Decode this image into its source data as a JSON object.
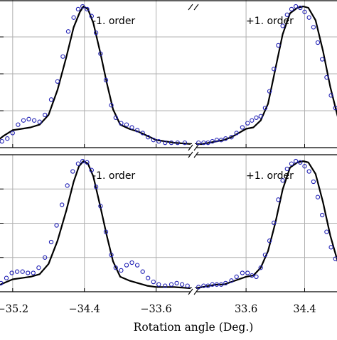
{
  "chart_data": {
    "type": "line",
    "xlabel": "Rotation angle (Deg.)",
    "x_ticks_left": [
      -35.2,
      -34.4,
      -33.6
    ],
    "x_tick_labels_left": [
      "−35.2",
      "−34.4",
      "−33.6"
    ],
    "x_ticks_right": [
      33.6,
      34.4
    ],
    "x_tick_labels_right": [
      "33.6",
      "34.4"
    ],
    "x_range_left": [
      -35.5,
      -33.2
    ],
    "x_range_right": [
      32.9,
      34.9
    ],
    "axis_break": true,
    "grid": true,
    "legend": "none",
    "colors": {
      "line": "#000000",
      "markers": "#1f1fb4",
      "grid": "#b0b0b0"
    },
    "panels": [
      {
        "left_annotation": "-1. order",
        "right_annotation": "+1. order",
        "ylim": [
          0,
          1.0
        ],
        "series": [
          {
            "style": "solid-line",
            "left_points": [
              [
                -35.5,
                0.01
              ],
              [
                -35.4,
                0.02
              ],
              [
                -35.3,
                0.07
              ],
              [
                -35.2,
                0.11
              ],
              [
                -35.1,
                0.12
              ],
              [
                -35.0,
                0.13
              ],
              [
                -34.9,
                0.15
              ],
              [
                -34.8,
                0.22
              ],
              [
                -34.7,
                0.4
              ],
              [
                -34.6,
                0.64
              ],
              [
                -34.52,
                0.85
              ],
              [
                -34.45,
                0.96
              ],
              [
                -34.41,
                1.0
              ],
              [
                -34.36,
                0.98
              ],
              [
                -34.3,
                0.88
              ],
              [
                -34.22,
                0.66
              ],
              [
                -34.15,
                0.45
              ],
              [
                -34.08,
                0.26
              ],
              [
                -34.0,
                0.15
              ],
              [
                -33.9,
                0.12
              ],
              [
                -33.8,
                0.1
              ],
              [
                -33.7,
                0.07
              ],
              [
                -33.6,
                0.04
              ],
              [
                -33.5,
                0.03
              ],
              [
                -33.4,
                0.02
              ],
              [
                -33.2,
                0.01
              ]
            ],
            "right_points": [
              [
                32.9,
                0.01
              ],
              [
                33.0,
                0.01
              ],
              [
                33.1,
                0.02
              ],
              [
                33.2,
                0.03
              ],
              [
                33.3,
                0.04
              ],
              [
                33.4,
                0.06
              ],
              [
                33.5,
                0.09
              ],
              [
                33.6,
                0.12
              ],
              [
                33.7,
                0.13
              ],
              [
                33.8,
                0.18
              ],
              [
                33.9,
                0.3
              ],
              [
                34.0,
                0.55
              ],
              [
                34.1,
                0.8
              ],
              [
                34.2,
                0.95
              ],
              [
                34.3,
                0.99
              ],
              [
                34.38,
                1.0
              ],
              [
                34.45,
                0.99
              ],
              [
                34.55,
                0.9
              ],
              [
                34.65,
                0.68
              ],
              [
                34.75,
                0.42
              ],
              [
                34.85,
                0.21
              ],
              [
                34.9,
                0.14
              ]
            ]
          },
          {
            "style": "open-circle-markers",
            "left_points": [
              [
                -35.45,
                0.02
              ],
              [
                -35.38,
                0.02
              ],
              [
                -35.32,
                0.03
              ],
              [
                -35.26,
                0.05
              ],
              [
                -35.2,
                0.09
              ],
              [
                -35.14,
                0.15
              ],
              [
                -35.08,
                0.18
              ],
              [
                -35.02,
                0.19
              ],
              [
                -34.96,
                0.18
              ],
              [
                -34.9,
                0.17
              ],
              [
                -34.84,
                0.22
              ],
              [
                -34.77,
                0.33
              ],
              [
                -34.7,
                0.46
              ],
              [
                -34.64,
                0.64
              ],
              [
                -34.58,
                0.82
              ],
              [
                -34.52,
                0.92
              ],
              [
                -34.47,
                0.98
              ],
              [
                -34.42,
                1.0
              ],
              [
                -34.37,
                0.98
              ],
              [
                -34.32,
                0.93
              ],
              [
                -34.27,
                0.81
              ],
              [
                -34.22,
                0.66
              ],
              [
                -34.16,
                0.47
              ],
              [
                -34.1,
                0.29
              ],
              [
                -34.05,
                0.2
              ],
              [
                -33.99,
                0.16
              ],
              [
                -33.93,
                0.15
              ],
              [
                -33.87,
                0.13
              ],
              [
                -33.81,
                0.11
              ],
              [
                -33.75,
                0.09
              ],
              [
                -33.69,
                0.06
              ],
              [
                -33.63,
                0.04
              ],
              [
                -33.57,
                0.03
              ],
              [
                -33.5,
                0.02
              ],
              [
                -33.43,
                0.02
              ],
              [
                -33.36,
                0.02
              ],
              [
                -33.28,
                0.02
              ]
            ],
            "right_points": [
              [
                32.95,
                0.02
              ],
              [
                33.02,
                0.02
              ],
              [
                33.08,
                0.02
              ],
              [
                33.14,
                0.03
              ],
              [
                33.2,
                0.04
              ],
              [
                33.26,
                0.04
              ],
              [
                33.32,
                0.05
              ],
              [
                33.4,
                0.06
              ],
              [
                33.47,
                0.09
              ],
              [
                33.55,
                0.13
              ],
              [
                33.62,
                0.16
              ],
              [
                33.68,
                0.18
              ],
              [
                33.74,
                0.2
              ],
              [
                33.8,
                0.21
              ],
              [
                33.86,
                0.27
              ],
              [
                33.92,
                0.39
              ],
              [
                33.98,
                0.55
              ],
              [
                34.04,
                0.72
              ],
              [
                34.1,
                0.86
              ],
              [
                34.16,
                0.94
              ],
              [
                34.22,
                0.98
              ],
              [
                34.28,
                1.0
              ],
              [
                34.34,
                0.99
              ],
              [
                34.4,
                0.96
              ],
              [
                34.46,
                0.92
              ],
              [
                34.52,
                0.85
              ],
              [
                34.58,
                0.74
              ],
              [
                34.64,
                0.62
              ],
              [
                34.7,
                0.49
              ],
              [
                34.76,
                0.36
              ],
              [
                34.82,
                0.27
              ],
              [
                34.88,
                0.21
              ]
            ]
          }
        ]
      },
      {
        "left_annotation": "-1. order",
        "right_annotation": "+1. order",
        "ylim": [
          0,
          1.0
        ],
        "series": [
          {
            "style": "solid-line",
            "left_points": [
              [
                -35.5,
                0.01
              ],
              [
                -35.4,
                0.02
              ],
              [
                -35.3,
                0.05
              ],
              [
                -35.2,
                0.08
              ],
              [
                -35.1,
                0.09
              ],
              [
                -35.0,
                0.1
              ],
              [
                -34.9,
                0.12
              ],
              [
                -34.8,
                0.2
              ],
              [
                -34.7,
                0.38
              ],
              [
                -34.6,
                0.62
              ],
              [
                -34.52,
                0.84
              ],
              [
                -34.46,
                0.96
              ],
              [
                -34.41,
                1.0
              ],
              [
                -34.36,
                0.98
              ],
              [
                -34.3,
                0.88
              ],
              [
                -34.22,
                0.64
              ],
              [
                -34.15,
                0.42
              ],
              [
                -34.08,
                0.22
              ],
              [
                -34.0,
                0.1
              ],
              [
                -33.9,
                0.07
              ],
              [
                -33.8,
                0.05
              ],
              [
                -33.7,
                0.03
              ],
              [
                -33.6,
                0.02
              ],
              [
                -33.4,
                0.02
              ],
              [
                -33.2,
                0.01
              ]
            ],
            "right_points": [
              [
                32.9,
                0.01
              ],
              [
                33.0,
                0.02
              ],
              [
                33.1,
                0.03
              ],
              [
                33.2,
                0.04
              ],
              [
                33.3,
                0.04
              ],
              [
                33.4,
                0.06
              ],
              [
                33.5,
                0.08
              ],
              [
                33.6,
                0.1
              ],
              [
                33.7,
                0.11
              ],
              [
                33.8,
                0.17
              ],
              [
                33.9,
                0.3
              ],
              [
                34.0,
                0.52
              ],
              [
                34.1,
                0.78
              ],
              [
                34.2,
                0.95
              ],
              [
                34.3,
                0.99
              ],
              [
                34.38,
                1.0
              ],
              [
                34.45,
                0.99
              ],
              [
                34.55,
                0.9
              ],
              [
                34.65,
                0.68
              ],
              [
                34.75,
                0.42
              ],
              [
                34.85,
                0.22
              ],
              [
                34.9,
                0.15
              ]
            ]
          },
          {
            "style": "open-circle-markers",
            "left_points": [
              [
                -35.45,
                0.02
              ],
              [
                -35.39,
                0.03
              ],
              [
                -35.33,
                0.05
              ],
              [
                -35.27,
                0.09
              ],
              [
                -35.21,
                0.13
              ],
              [
                -35.15,
                0.14
              ],
              [
                -35.09,
                0.14
              ],
              [
                -35.03,
                0.13
              ],
              [
                -34.97,
                0.13
              ],
              [
                -34.91,
                0.17
              ],
              [
                -34.84,
                0.25
              ],
              [
                -34.77,
                0.37
              ],
              [
                -34.71,
                0.5
              ],
              [
                -34.65,
                0.66
              ],
              [
                -34.59,
                0.81
              ],
              [
                -34.53,
                0.92
              ],
              [
                -34.47,
                0.98
              ],
              [
                -34.42,
                1.0
              ],
              [
                -34.37,
                0.99
              ],
              [
                -34.32,
                0.93
              ],
              [
                -34.27,
                0.8
              ],
              [
                -34.22,
                0.65
              ],
              [
                -34.16,
                0.45
              ],
              [
                -34.1,
                0.27
              ],
              [
                -34.05,
                0.17
              ],
              [
                -33.99,
                0.15
              ],
              [
                -33.93,
                0.19
              ],
              [
                -33.87,
                0.21
              ],
              [
                -33.81,
                0.19
              ],
              [
                -33.75,
                0.14
              ],
              [
                -33.69,
                0.09
              ],
              [
                -33.63,
                0.06
              ],
              [
                -33.57,
                0.04
              ],
              [
                -33.5,
                0.03
              ],
              [
                -33.43,
                0.04
              ],
              [
                -33.37,
                0.05
              ],
              [
                -33.31,
                0.04
              ],
              [
                -33.25,
                0.03
              ]
            ],
            "right_points": [
              [
                32.95,
                0.02
              ],
              [
                33.02,
                0.03
              ],
              [
                33.08,
                0.03
              ],
              [
                33.14,
                0.04
              ],
              [
                33.2,
                0.04
              ],
              [
                33.26,
                0.04
              ],
              [
                33.32,
                0.05
              ],
              [
                33.4,
                0.07
              ],
              [
                33.47,
                0.1
              ],
              [
                33.55,
                0.13
              ],
              [
                33.62,
                0.13
              ],
              [
                33.68,
                0.11
              ],
              [
                33.74,
                0.1
              ],
              [
                33.8,
                0.17
              ],
              [
                33.86,
                0.27
              ],
              [
                33.92,
                0.38
              ],
              [
                33.98,
                0.52
              ],
              [
                34.04,
                0.7
              ],
              [
                34.1,
                0.85
              ],
              [
                34.16,
                0.94
              ],
              [
                34.22,
                0.98
              ],
              [
                34.28,
                1.0
              ],
              [
                34.34,
                0.99
              ],
              [
                34.4,
                0.96
              ],
              [
                34.46,
                0.92
              ],
              [
                34.52,
                0.84
              ],
              [
                34.58,
                0.72
              ],
              [
                34.64,
                0.58
              ],
              [
                34.7,
                0.45
              ],
              [
                34.76,
                0.33
              ],
              [
                34.82,
                0.24
              ],
              [
                34.88,
                0.18
              ]
            ]
          }
        ]
      }
    ]
  }
}
